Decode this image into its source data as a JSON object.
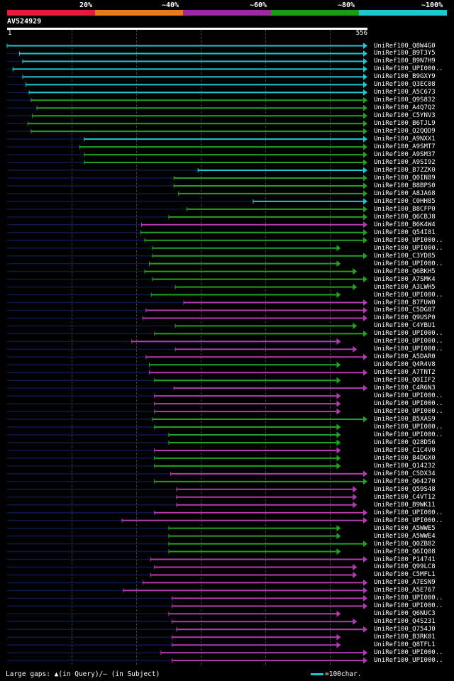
{
  "scale": {
    "segments": [
      {
        "color": "#e8193c"
      },
      {
        "color": "#e87a1a"
      },
      {
        "color": "#9c2a9a"
      },
      {
        "color": "#1a9b1a"
      },
      {
        "color": "#1ec8d2"
      }
    ],
    "labels": [
      "20%",
      "~40%",
      "~60%",
      "~80%",
      "~100%"
    ]
  },
  "query": {
    "id": "AV524929",
    "start": "1",
    "end": "556"
  },
  "colors": {
    "cyan": "#1ec8d2",
    "green": "#22a122",
    "purple": "#b23bb2",
    "dark": "#0c1a4a"
  },
  "hits": [
    {
      "name": "UniRef100_Q8W4G0",
      "c": "cyan",
      "s": 1,
      "e": 556,
      "d": 0
    },
    {
      "name": "UniRef100_B9T3Y5",
      "c": "cyan",
      "s": 20,
      "e": 556,
      "d": 0
    },
    {
      "name": "UniRef100_B9N7H9",
      "c": "cyan",
      "s": 25,
      "e": 556,
      "d": 0
    },
    {
      "name": "UniRef100_UPI000..",
      "c": "cyan",
      "s": 10,
      "e": 556,
      "d": 0
    },
    {
      "name": "UniRef100_B9GXY9",
      "c": "cyan",
      "s": 25,
      "e": 556,
      "d": 0
    },
    {
      "name": "UniRef100_Q3EC08",
      "c": "cyan",
      "s": 30,
      "e": 556,
      "d": 0
    },
    {
      "name": "UniRef100_A5C673",
      "c": "cyan",
      "s": 35,
      "e": 556,
      "d": 0
    },
    {
      "name": "UniRef100_Q9S832",
      "c": "green",
      "s": 38,
      "e": 556,
      "d": 0
    },
    {
      "name": "UniRef100_A4Q7Q2",
      "c": "green",
      "s": 47,
      "e": 556,
      "d": 0
    },
    {
      "name": "UniRef100_C5YNV3",
      "c": "green",
      "s": 40,
      "e": 556,
      "d": 0
    },
    {
      "name": "UniRef100_B6TJL9",
      "c": "green",
      "s": 33,
      "e": 556,
      "d": 0
    },
    {
      "name": "UniRef100_Q2QQD9",
      "c": "green",
      "s": 38,
      "e": 556,
      "d": 0
    },
    {
      "name": "UniRef100_A9NXX1",
      "c": "cyan",
      "s": 120,
      "e": 556,
      "d": 0
    },
    {
      "name": "UniRef100_A9SMT7",
      "c": "green",
      "s": 113,
      "e": 556,
      "d": 0
    },
    {
      "name": "UniRef100_A9SM37",
      "c": "green",
      "s": 120,
      "e": 556,
      "d": 0
    },
    {
      "name": "UniRef100_A9SI92",
      "c": "green",
      "s": 120,
      "e": 556,
      "d": 0
    },
    {
      "name": "UniRef100_B7ZZK0",
      "c": "cyan",
      "s": 295,
      "e": 556,
      "d": 1
    },
    {
      "name": "UniRef100_Q0IN89",
      "c": "green",
      "s": 258,
      "e": 556,
      "d": 1
    },
    {
      "name": "UniRef100_B8BPS0",
      "c": "green",
      "s": 258,
      "e": 556,
      "d": 1
    },
    {
      "name": "UniRef100_A8JA68",
      "c": "green",
      "s": 265,
      "e": 556,
      "d": 1
    },
    {
      "name": "UniRef100_C0HH85",
      "c": "cyan",
      "s": 380,
      "e": 556,
      "d": 1
    },
    {
      "name": "UniRef100_B8CFP0",
      "c": "green",
      "s": 278,
      "e": 556,
      "d": 1
    },
    {
      "name": "UniRef100_Q6CBJ8",
      "c": "green",
      "s": 250,
      "e": 556,
      "d": 1
    },
    {
      "name": "UniRef100_B6K4W4",
      "c": "purple",
      "s": 208,
      "e": 556,
      "d": 1
    },
    {
      "name": "UniRef100_Q54I81",
      "c": "green",
      "s": 207,
      "e": 556,
      "d": 1
    },
    {
      "name": "UniRef100_UPI000..",
      "c": "green",
      "s": 213,
      "e": 556,
      "d": 1
    },
    {
      "name": "UniRef100_UPI000..",
      "c": "green",
      "s": 225,
      "e": 515,
      "d": 1
    },
    {
      "name": "UniRef100_C3YD85",
      "c": "green",
      "s": 225,
      "e": 556,
      "d": 1
    },
    {
      "name": "UniRef100_UPI000..",
      "c": "green",
      "s": 220,
      "e": 515,
      "d": 1
    },
    {
      "name": "UniRef100_Q6BKH5",
      "c": "green",
      "s": 213,
      "e": 540,
      "d": 1
    },
    {
      "name": "UniRef100_A7SMK4",
      "c": "green",
      "s": 225,
      "e": 556,
      "d": 1
    },
    {
      "name": "UniRef100_A3LWH5",
      "c": "green",
      "s": 260,
      "e": 540,
      "d": 1
    },
    {
      "name": "UniRef100_UPI000..",
      "c": "green",
      "s": 223,
      "e": 515,
      "d": 1
    },
    {
      "name": "UniRef100_B7FUW0",
      "c": "purple",
      "s": 273,
      "e": 556,
      "d": 1
    },
    {
      "name": "UniRef100_C5DG87",
      "c": "purple",
      "s": 215,
      "e": 556,
      "d": 1
    },
    {
      "name": "UniRef100_Q9USP0",
      "c": "purple",
      "s": 210,
      "e": 556,
      "d": 1
    },
    {
      "name": "UniRef100_C4YBU1",
      "c": "green",
      "s": 260,
      "e": 540,
      "d": 1
    },
    {
      "name": "UniRef100_UPI000..",
      "c": "green",
      "s": 228,
      "e": 556,
      "d": 1
    },
    {
      "name": "UniRef100_UPI000..",
      "c": "purple",
      "s": 193,
      "e": 515,
      "d": 1
    },
    {
      "name": "UniRef100_UPI000..",
      "c": "purple",
      "s": 260,
      "e": 540,
      "d": 1
    },
    {
      "name": "UniRef100_A5DAR0",
      "c": "purple",
      "s": 215,
      "e": 556,
      "d": 1
    },
    {
      "name": "UniRef100_Q4R4V8",
      "c": "green",
      "s": 220,
      "e": 515,
      "d": 1
    },
    {
      "name": "UniRef100_A7TNT2",
      "c": "purple",
      "s": 220,
      "e": 556,
      "d": 1
    },
    {
      "name": "UniRef100_Q0IIF2",
      "c": "green",
      "s": 228,
      "e": 515,
      "d": 1
    },
    {
      "name": "UniRef100_C4R6N3",
      "c": "purple",
      "s": 258,
      "e": 556,
      "d": 1
    },
    {
      "name": "UniRef100_UPI000..",
      "c": "purple",
      "s": 228,
      "e": 515,
      "d": 1
    },
    {
      "name": "UniRef100_UPI000..",
      "c": "purple",
      "s": 228,
      "e": 515,
      "d": 1
    },
    {
      "name": "UniRef100_UPI000..",
      "c": "purple",
      "s": 228,
      "e": 515,
      "d": 1
    },
    {
      "name": "UniRef100_B5XAS9",
      "c": "green",
      "s": 225,
      "e": 556,
      "d": 1
    },
    {
      "name": "UniRef100_UPI000..",
      "c": "green",
      "s": 228,
      "e": 515,
      "d": 1
    },
    {
      "name": "UniRef100_UPI000..",
      "c": "green",
      "s": 250,
      "e": 515,
      "d": 1
    },
    {
      "name": "UniRef100_Q28D56",
      "c": "green",
      "s": 250,
      "e": 515,
      "d": 1
    },
    {
      "name": "UniRef100_C1C4V0",
      "c": "purple",
      "s": 228,
      "e": 515,
      "d": 1
    },
    {
      "name": "UniRef100_B4DGX0",
      "c": "green",
      "s": 228,
      "e": 515,
      "d": 1
    },
    {
      "name": "UniRef100_Q14232",
      "c": "green",
      "s": 228,
      "e": 515,
      "d": 1
    },
    {
      "name": "UniRef100_C5DX34",
      "c": "purple",
      "s": 253,
      "e": 556,
      "d": 1
    },
    {
      "name": "UniRef100_Q64270",
      "c": "green",
      "s": 228,
      "e": 556,
      "d": 1
    },
    {
      "name": "UniRef100_Q59S48",
      "c": "purple",
      "s": 262,
      "e": 540,
      "d": 1
    },
    {
      "name": "UniRef100_C4VT12",
      "c": "purple",
      "s": 262,
      "e": 540,
      "d": 1
    },
    {
      "name": "UniRef100_B9WK11",
      "c": "purple",
      "s": 262,
      "e": 540,
      "d": 1
    },
    {
      "name": "UniRef100_UPI000..",
      "c": "purple",
      "s": 228,
      "e": 556,
      "d": 1
    },
    {
      "name": "UniRef100_UPI000..",
      "c": "purple",
      "s": 178,
      "e": 556,
      "d": 1
    },
    {
      "name": "UniRef100_A5WWE5",
      "c": "green",
      "s": 250,
      "e": 515,
      "d": 1
    },
    {
      "name": "UniRef100_A5WWE4",
      "c": "green",
      "s": 250,
      "e": 515,
      "d": 1
    },
    {
      "name": "UniRef100_Q0ZB82",
      "c": "green",
      "s": 250,
      "e": 556,
      "d": 1
    },
    {
      "name": "UniRef100_Q6IQ08",
      "c": "green",
      "s": 250,
      "e": 515,
      "d": 1
    },
    {
      "name": "UniRef100_P14741",
      "c": "purple",
      "s": 222,
      "e": 556,
      "d": 1
    },
    {
      "name": "UniRef100_Q99LC8",
      "c": "purple",
      "s": 228,
      "e": 540,
      "d": 1
    },
    {
      "name": "UniRef100_C5MFL1",
      "c": "purple",
      "s": 222,
      "e": 540,
      "d": 1
    },
    {
      "name": "UniRef100_A7ESN9",
      "c": "purple",
      "s": 210,
      "e": 556,
      "d": 1
    },
    {
      "name": "UniRef100_A5E767",
      "c": "purple",
      "s": 180,
      "e": 556,
      "d": 1
    },
    {
      "name": "UniRef100_UPI000..",
      "c": "purple",
      "s": 255,
      "e": 556,
      "d": 1
    },
    {
      "name": "UniRef100_UPI000..",
      "c": "purple",
      "s": 255,
      "e": 556,
      "d": 1
    },
    {
      "name": "UniRef100_Q6NUC3",
      "c": "purple",
      "s": 250,
      "e": 515,
      "d": 1
    },
    {
      "name": "UniRef100_Q4S231",
      "c": "purple",
      "s": 255,
      "e": 540,
      "d": 1
    },
    {
      "name": "UniRef100_Q754J0",
      "c": "purple",
      "s": 262,
      "e": 556,
      "d": 1
    },
    {
      "name": "UniRef100_B3RK01",
      "c": "purple",
      "s": 255,
      "e": 515,
      "d": 1
    },
    {
      "name": "UniRef100_Q8TFL1",
      "c": "purple",
      "s": 255,
      "e": 515,
      "d": 1
    },
    {
      "name": "UniRef100_UPI000..",
      "c": "purple",
      "s": 238,
      "e": 556,
      "d": 1
    },
    {
      "name": "UniRef100_UPI000..",
      "c": "purple",
      "s": 255,
      "e": 556,
      "d": 1
    }
  ],
  "footer": {
    "gaps_text": "Large gaps: ▲(in Query)/– (in Subject)",
    "legend_text": "=100char."
  }
}
